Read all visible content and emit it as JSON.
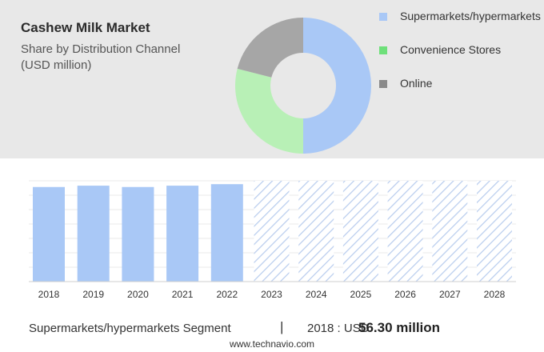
{
  "header": {
    "title": "Cashew Milk Market",
    "subtitle": "Share by Distribution Channel (USD million)"
  },
  "legend": [
    {
      "label": "Supermarkets/hypermarkets",
      "color": "#a9c8f6"
    },
    {
      "label": "Convenience Stores",
      "color": "#6ee07a"
    },
    {
      "label": "Online",
      "color": "#8a8a8a"
    }
  ],
  "footer": {
    "segment": "Supermarkets/hypermarkets Segment",
    "divider": "|",
    "year_prefix": "2018 : USD",
    "value_bold": "56.30 million",
    "site": "www.technavio.com"
  },
  "chart_data": [
    {
      "type": "pie",
      "title": "Cashew Milk Market",
      "subtitle": "Share by Distribution Channel (USD million)",
      "donut": true,
      "slices": [
        {
          "label": "Supermarkets/hypermarkets",
          "value": 50,
          "color": "#a9c8f6"
        },
        {
          "label": "Convenience Stores",
          "value": 29,
          "color": "#b8f0b6"
        },
        {
          "label": "Online",
          "value": 21,
          "color": "#a6a6a6"
        }
      ],
      "legend_position": "right"
    },
    {
      "type": "bar",
      "categories": [
        "2018",
        "2019",
        "2020",
        "2021",
        "2022",
        "2023",
        "2024",
        "2025",
        "2026",
        "2027",
        "2028"
      ],
      "series": [
        {
          "name": "Supermarkets/hypermarkets",
          "values": [
            56.3,
            57.1,
            56.3,
            57.1,
            58.0,
            null,
            null,
            null,
            null,
            null,
            null
          ]
        }
      ],
      "forecast_categories": [
        "2023",
        "2024",
        "2025",
        "2026",
        "2027",
        "2028"
      ],
      "ylim": [
        0,
        80
      ],
      "grid": true,
      "bar_color": "#a9c8f6",
      "forecast_color": "#b9cdee"
    }
  ]
}
